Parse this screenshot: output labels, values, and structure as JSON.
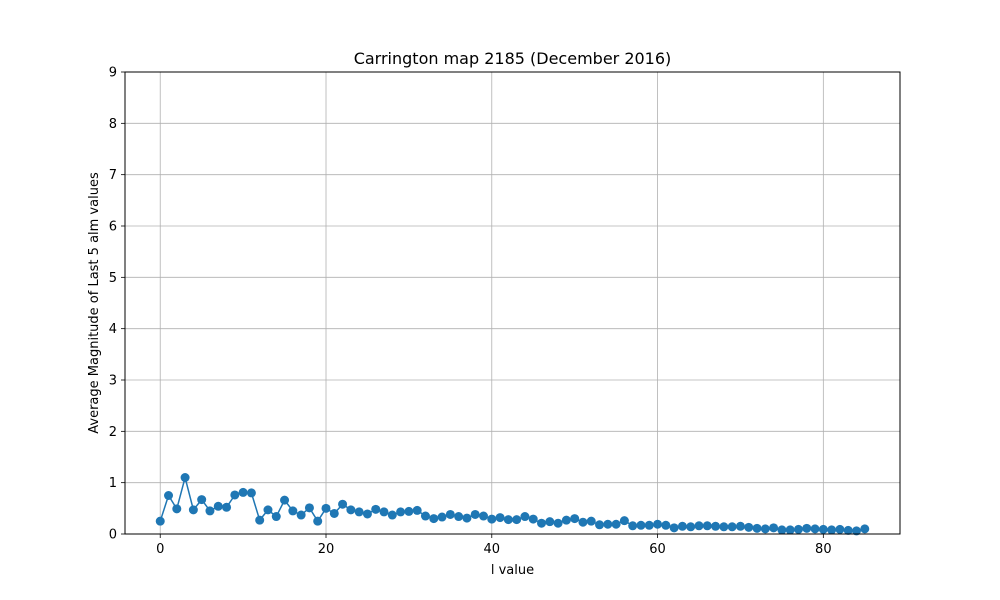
{
  "chart_data": {
    "type": "line",
    "title": "Carrington map 2185 (December 2016)",
    "xlabel": "l value",
    "ylabel": "Average Magnitude of Last 5 alm values",
    "xlim": [
      -4.25,
      89.25
    ],
    "ylim": [
      0,
      9
    ],
    "xticks": [
      0,
      20,
      40,
      60,
      80
    ],
    "yticks": [
      0,
      1,
      2,
      3,
      4,
      5,
      6,
      7,
      8,
      9
    ],
    "grid": true,
    "color": "#1f77b4",
    "marker": "circle",
    "series": [
      {
        "x": [
          0,
          1,
          2,
          3,
          4,
          5,
          6,
          7,
          8,
          9,
          10,
          11,
          12,
          13,
          14,
          15,
          16,
          17,
          18,
          19,
          20,
          21,
          22,
          23,
          24,
          25,
          26,
          27,
          28,
          29,
          30,
          31,
          32,
          33,
          34,
          35,
          36,
          37,
          38,
          39,
          40,
          41,
          42,
          43,
          44,
          45,
          46,
          47,
          48,
          49,
          50,
          51,
          52,
          53,
          54,
          55,
          56,
          57,
          58,
          59,
          60,
          61,
          62,
          63,
          64,
          65,
          66,
          67,
          68,
          69,
          70,
          71,
          72,
          73,
          74,
          75,
          76,
          77,
          78,
          79,
          80,
          81,
          82,
          83,
          84,
          85
        ],
        "values": [
          0.25,
          0.75,
          0.49,
          1.1,
          0.47,
          0.67,
          0.45,
          0.54,
          0.52,
          0.76,
          0.81,
          0.8,
          0.27,
          0.47,
          0.34,
          0.66,
          0.45,
          0.37,
          0.51,
          0.25,
          0.5,
          0.4,
          0.58,
          0.47,
          0.43,
          0.39,
          0.48,
          0.43,
          0.37,
          0.43,
          0.44,
          0.46,
          0.35,
          0.3,
          0.33,
          0.38,
          0.34,
          0.31,
          0.38,
          0.35,
          0.29,
          0.32,
          0.28,
          0.28,
          0.34,
          0.29,
          0.21,
          0.24,
          0.21,
          0.27,
          0.3,
          0.23,
          0.25,
          0.18,
          0.19,
          0.19,
          0.26,
          0.16,
          0.17,
          0.17,
          0.19,
          0.17,
          0.12,
          0.15,
          0.14,
          0.16,
          0.16,
          0.15,
          0.14,
          0.14,
          0.15,
          0.13,
          0.11,
          0.1,
          0.12,
          0.08,
          0.08,
          0.09,
          0.11,
          0.1,
          0.09,
          0.08,
          0.09,
          0.07,
          0.06,
          0.1
        ]
      }
    ]
  }
}
